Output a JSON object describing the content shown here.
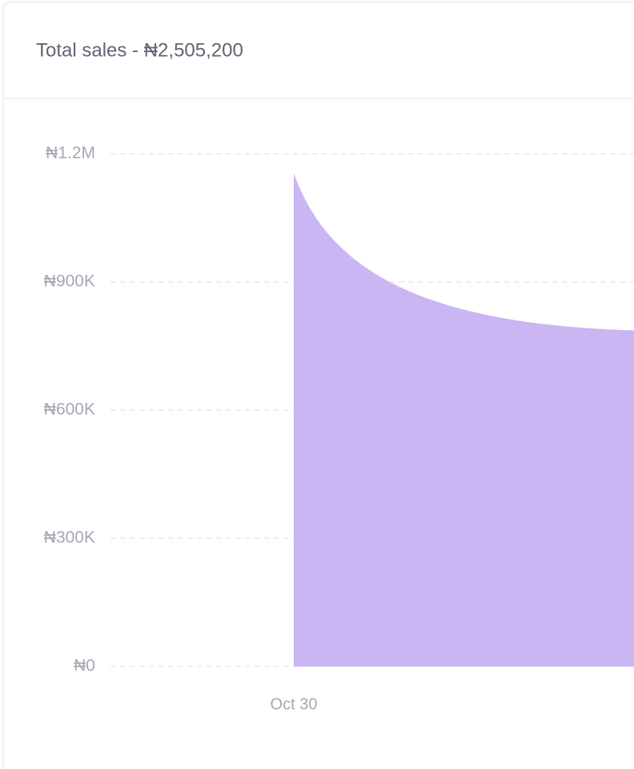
{
  "chart_data": {
    "type": "area",
    "title": "Total sales - ₦2,505,200",
    "categories": [
      "Oct 30",
      null
    ],
    "values": [
      1155000,
      785000
    ],
    "color": "#c9b6f3",
    "ylim": [
      0,
      1200000
    ],
    "yticks": [
      {
        "value": 0,
        "label": "₦0"
      },
      {
        "value": 300000,
        "label": "₦300K"
      },
      {
        "value": 600000,
        "label": "₦600K"
      },
      {
        "value": 900000,
        "label": "₦900K"
      },
      {
        "value": 1200000,
        "label": "₦1.2M"
      }
    ],
    "grid": true
  }
}
